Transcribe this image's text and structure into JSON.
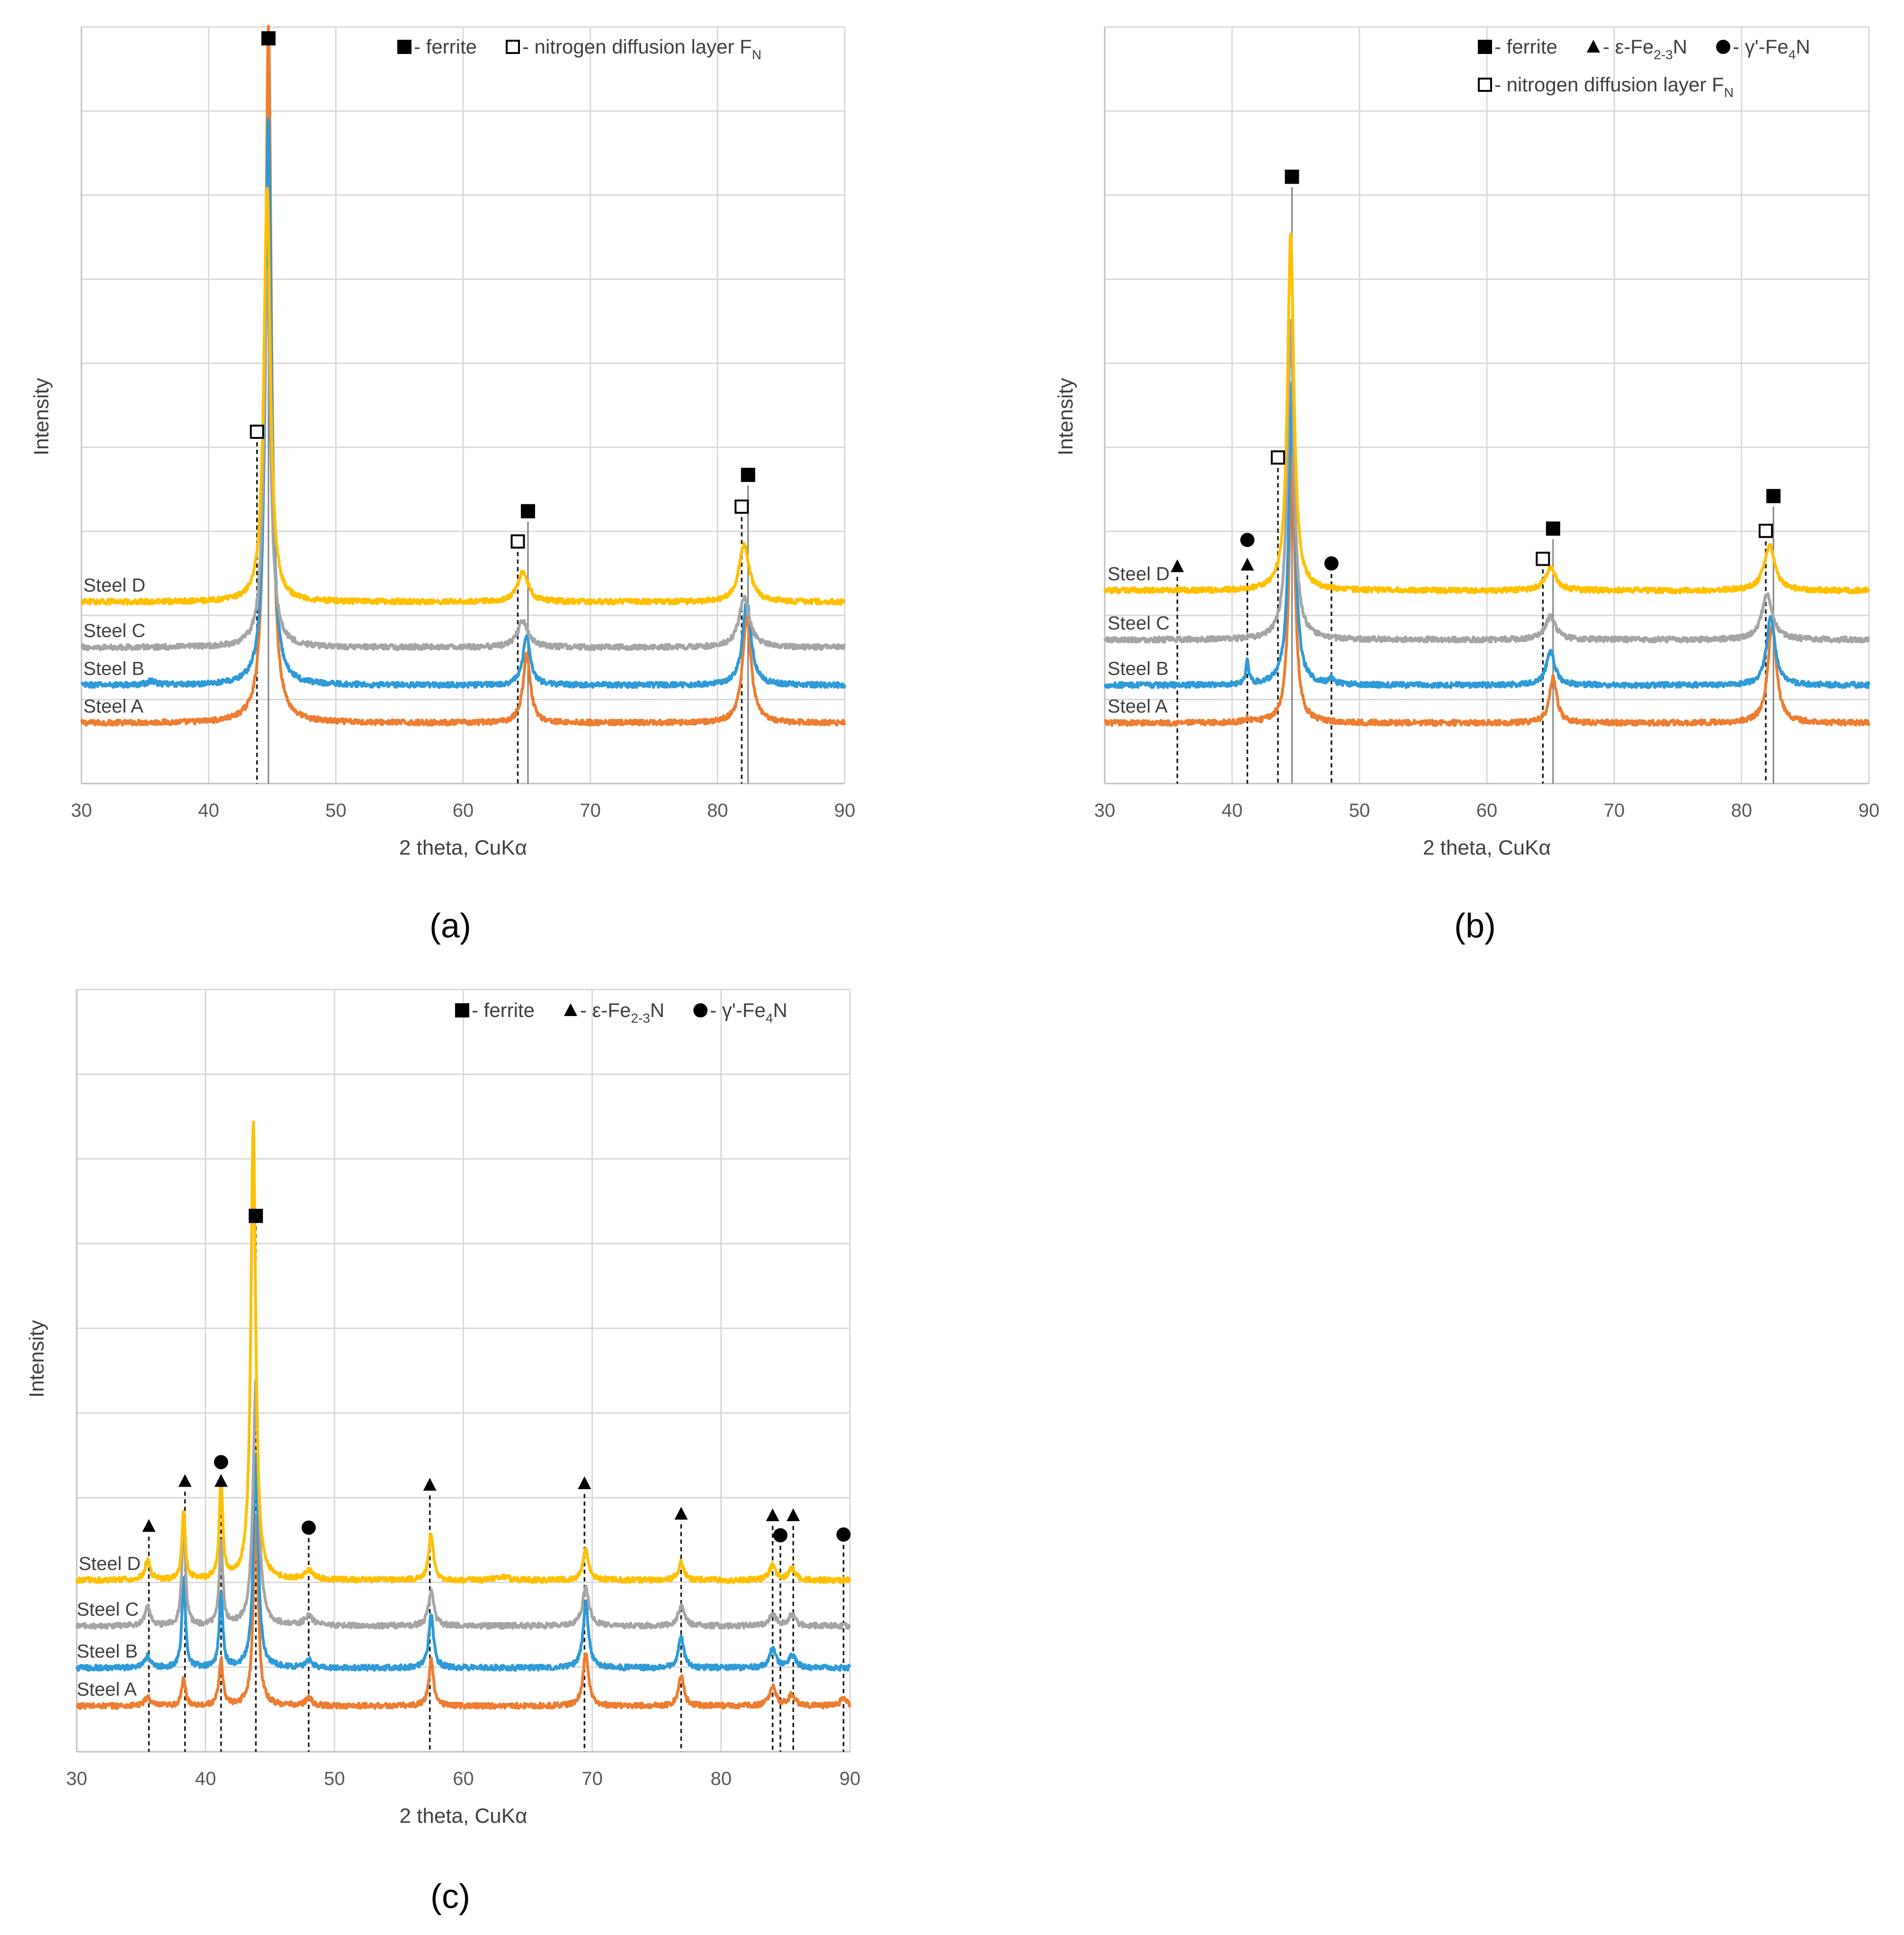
{
  "chart_data": [
    {
      "type": "line",
      "panel_label": "(a)",
      "xlabel": "2 theta, CuKα",
      "ylabel": "Intensity",
      "xlim": [
        30,
        90
      ],
      "xticks": [
        "30",
        "40",
        "50",
        "60",
        "70",
        "80",
        "90"
      ],
      "grid": true,
      "legend_placement": "top-right",
      "legend": [
        {
          "symbol": "filled-square",
          "text": "- ferrite"
        },
        {
          "symbol": "open-square",
          "text": "- nitrogen diffusion layer F",
          "sub": "N"
        }
      ],
      "series": [
        {
          "name": "Steel A",
          "color": "#ED7D31",
          "baseline": 0.08,
          "noise": 0.0035,
          "peaks": [
            [
              44.7,
              0.92,
              0.28
            ],
            [
              65.0,
              0.09,
              0.35
            ],
            [
              82.3,
              0.14,
              0.4
            ]
          ]
        },
        {
          "name": "Steel B",
          "color": "#2E9AD7",
          "baseline": 0.13,
          "noise": 0.0035,
          "peaks": [
            [
              44.7,
              0.75,
              0.28
            ],
            [
              65.0,
              0.065,
              0.35
            ],
            [
              82.3,
              0.11,
              0.4
            ],
            [
              35.5,
              0.005,
              0.4
            ]
          ]
        },
        {
          "name": "Steel C",
          "color": "#A5A5A5",
          "baseline": 0.18,
          "noise": 0.0035,
          "peaks": [
            [
              44.6,
              0.5,
              0.3
            ],
            [
              64.7,
              0.035,
              0.5
            ],
            [
              82.1,
              0.065,
              0.5
            ]
          ]
        },
        {
          "name": "Steel D",
          "color": "#FFC000",
          "baseline": 0.24,
          "noise": 0.0035,
          "peaks": [
            [
              44.6,
              0.55,
              0.3
            ],
            [
              64.7,
              0.04,
              0.5
            ],
            [
              82.1,
              0.075,
              0.5
            ]
          ]
        }
      ],
      "markers": [
        {
          "symbol": "filled-square",
          "x": 44.7,
          "level": 0.985,
          "line": "solid"
        },
        {
          "symbol": "open-square",
          "x": 43.8,
          "level": 0.465,
          "line": "dashed"
        },
        {
          "symbol": "filled-square",
          "x": 65.1,
          "level": 0.36,
          "line": "solid"
        },
        {
          "symbol": "open-square",
          "x": 64.3,
          "level": 0.32,
          "line": "dashed"
        },
        {
          "symbol": "filled-square",
          "x": 82.4,
          "level": 0.408,
          "line": "solid"
        },
        {
          "symbol": "open-square",
          "x": 81.9,
          "level": 0.366,
          "line": "dashed"
        }
      ]
    },
    {
      "type": "line",
      "panel_label": "(b)",
      "xlabel": "2 theta, CuKα",
      "ylabel": "Intensity",
      "xlim": [
        30,
        90
      ],
      "xticks": [
        "30",
        "40",
        "50",
        "60",
        "70",
        "80",
        "90"
      ],
      "grid": true,
      "legend_placement": "top-right",
      "legend": [
        {
          "symbol": "filled-square",
          "text": "- ferrite"
        },
        {
          "symbol": "filled-triangle",
          "text": "- ε-Fe",
          "sub": "2-3",
          "after": "N"
        },
        {
          "symbol": "filled-circle",
          "text": "- γ'-Fe",
          "sub": "4",
          "after": "N"
        },
        {
          "symbol": "open-square",
          "text": "- nitrogen diffusion layer F",
          "sub": "N"
        }
      ],
      "series": [
        {
          "name": "Steel A",
          "color": "#ED7D31",
          "baseline": 0.08,
          "noise": 0.0035,
          "peaks": [
            [
              44.7,
              0.35,
              0.28
            ],
            [
              65.2,
              0.06,
              0.35
            ],
            [
              82.4,
              0.13,
              0.4
            ],
            [
              41.2,
              0.004,
              0.3
            ]
          ]
        },
        {
          "name": "Steel B",
          "color": "#2E9AD7",
          "baseline": 0.13,
          "noise": 0.0035,
          "peaks": [
            [
              44.7,
              0.4,
              0.28
            ],
            [
              41.2,
              0.03,
              0.15
            ],
            [
              47.8,
              0.008,
              0.2
            ],
            [
              65.0,
              0.045,
              0.4
            ],
            [
              82.3,
              0.09,
              0.4
            ]
          ]
        },
        {
          "name": "Steel C",
          "color": "#A5A5A5",
          "baseline": 0.19,
          "noise": 0.0035,
          "peaks": [
            [
              44.6,
              0.42,
              0.3
            ],
            [
              65.0,
              0.03,
              0.5
            ],
            [
              82.0,
              0.06,
              0.5
            ]
          ]
        },
        {
          "name": "Steel D",
          "color": "#FFC000",
          "baseline": 0.255,
          "noise": 0.0035,
          "peaks": [
            [
              44.6,
              0.47,
              0.3
            ],
            [
              65.0,
              0.03,
              0.5
            ],
            [
              82.2,
              0.06,
              0.5
            ]
          ]
        }
      ],
      "markers": [
        {
          "symbol": "filled-square",
          "x": 44.7,
          "level": 0.802,
          "line": "solid"
        },
        {
          "symbol": "open-square",
          "x": 43.6,
          "level": 0.431,
          "line": "dashed"
        },
        {
          "symbol": "filled-triangle",
          "x": 35.7,
          "level": 0.287,
          "line": "dashed"
        },
        {
          "symbol": "filled-triangle",
          "x": 41.2,
          "level": 0.289,
          "line": "dashed"
        },
        {
          "symbol": "filled-circle",
          "x": 41.2,
          "level": 0.322,
          "line": "none"
        },
        {
          "symbol": "filled-circle",
          "x": 47.8,
          "level": 0.291,
          "line": "dashed"
        },
        {
          "symbol": "filled-square",
          "x": 65.2,
          "level": 0.337,
          "line": "solid"
        },
        {
          "symbol": "open-square",
          "x": 64.4,
          "level": 0.297,
          "line": "dashed"
        },
        {
          "symbol": "filled-square",
          "x": 82.5,
          "level": 0.38,
          "line": "solid"
        },
        {
          "symbol": "open-square",
          "x": 81.9,
          "level": 0.334,
          "line": "dashed"
        }
      ]
    },
    {
      "type": "line",
      "panel_label": "(c)",
      "xlabel": "2 theta, CuKα",
      "ylabel": "Intensity",
      "xlim": [
        30,
        90
      ],
      "xticks": [
        "30",
        "40",
        "50",
        "60",
        "70",
        "80",
        "90"
      ],
      "grid": true,
      "legend_placement": "top-right",
      "legend": [
        {
          "symbol": "filled-square",
          "text": "- ferrite"
        },
        {
          "symbol": "filled-triangle",
          "text": "- ε-Fe",
          "sub": "2-3",
          "after": "N"
        },
        {
          "symbol": "filled-circle",
          "text": "- γ'-Fe",
          "sub": "4",
          "after": "N"
        }
      ],
      "series": [
        {
          "name": "Steel A",
          "color": "#ED7D31",
          "baseline": 0.06,
          "noise": 0.0035,
          "peaks": [
            [
              35.5,
              0.012,
              0.25
            ],
            [
              38.3,
              0.035,
              0.18
            ],
            [
              41.2,
              0.06,
              0.18
            ],
            [
              43.9,
              0.25,
              0.22
            ],
            [
              48.0,
              0.01,
              0.3
            ],
            [
              57.5,
              0.06,
              0.22
            ],
            [
              69.5,
              0.07,
              0.25
            ],
            [
              76.9,
              0.04,
              0.25
            ],
            [
              84.0,
              0.025,
              0.3
            ],
            [
              85.5,
              0.015,
              0.3
            ],
            [
              89.5,
              0.01,
              0.3
            ]
          ]
        },
        {
          "name": "Steel B",
          "color": "#2E9AD7",
          "baseline": 0.11,
          "noise": 0.0035,
          "peaks": [
            [
              35.5,
              0.015,
              0.25
            ],
            [
              38.3,
              0.12,
              0.16
            ],
            [
              41.2,
              0.1,
              0.16
            ],
            [
              43.9,
              0.28,
              0.22
            ],
            [
              48.0,
              0.01,
              0.3
            ],
            [
              57.5,
              0.07,
              0.22
            ],
            [
              69.5,
              0.085,
              0.25
            ],
            [
              76.9,
              0.04,
              0.25
            ],
            [
              84.0,
              0.025,
              0.3
            ],
            [
              85.5,
              0.018,
              0.3
            ]
          ]
        },
        {
          "name": "Steel C",
          "color": "#A5A5A5",
          "baseline": 0.165,
          "noise": 0.0035,
          "peaks": [
            [
              35.5,
              0.025,
              0.25
            ],
            [
              38.3,
              0.14,
              0.16
            ],
            [
              41.2,
              0.11,
              0.16
            ],
            [
              43.9,
              0.32,
              0.25
            ],
            [
              48.0,
              0.012,
              0.4
            ],
            [
              57.5,
              0.045,
              0.25
            ],
            [
              69.5,
              0.05,
              0.3
            ],
            [
              76.9,
              0.025,
              0.3
            ],
            [
              84.0,
              0.015,
              0.3
            ],
            [
              85.5,
              0.015,
              0.3
            ]
          ]
        },
        {
          "name": "Steel D",
          "color": "#FFC000",
          "baseline": 0.225,
          "noise": 0.0035,
          "peaks": [
            [
              35.5,
              0.025,
              0.25
            ],
            [
              38.3,
              0.09,
              0.16
            ],
            [
              41.2,
              0.13,
              0.16
            ],
            [
              43.7,
              0.6,
              0.22
            ],
            [
              48.0,
              0.012,
              0.4
            ],
            [
              57.5,
              0.06,
              0.22
            ],
            [
              69.5,
              0.04,
              0.25
            ],
            [
              76.9,
              0.025,
              0.25
            ],
            [
              84.0,
              0.02,
              0.3
            ],
            [
              85.5,
              0.015,
              0.3
            ],
            [
              63.0,
              0.005,
              0.5
            ]
          ]
        }
      ],
      "markers": [
        {
          "symbol": "filled-square",
          "x": 43.9,
          "level": 0.703,
          "line": "dashed"
        },
        {
          "symbol": "filled-triangle",
          "x": 35.6,
          "level": 0.296,
          "line": "dashed"
        },
        {
          "symbol": "filled-triangle",
          "x": 38.4,
          "level": 0.355,
          "line": "dashed"
        },
        {
          "symbol": "filled-triangle",
          "x": 41.2,
          "level": 0.355,
          "line": "dashed"
        },
        {
          "symbol": "filled-circle",
          "x": 41.2,
          "level": 0.38,
          "line": "none"
        },
        {
          "symbol": "filled-circle",
          "x": 48.0,
          "level": 0.294,
          "line": "dashed"
        },
        {
          "symbol": "filled-triangle",
          "x": 57.4,
          "level": 0.35,
          "line": "dashed"
        },
        {
          "symbol": "filled-triangle",
          "x": 69.4,
          "level": 0.352,
          "line": "dashed"
        },
        {
          "symbol": "filled-triangle",
          "x": 76.9,
          "level": 0.312,
          "line": "dashed"
        },
        {
          "symbol": "filled-triangle",
          "x": 84.0,
          "level": 0.31,
          "line": "dashed"
        },
        {
          "symbol": "filled-triangle",
          "x": 85.6,
          "level": 0.31,
          "line": "dashed"
        },
        {
          "symbol": "filled-circle",
          "x": 84.6,
          "level": 0.284,
          "line": "dashed"
        },
        {
          "symbol": "filled-circle",
          "x": 89.5,
          "level": 0.285,
          "line": "dashed"
        }
      ]
    }
  ]
}
